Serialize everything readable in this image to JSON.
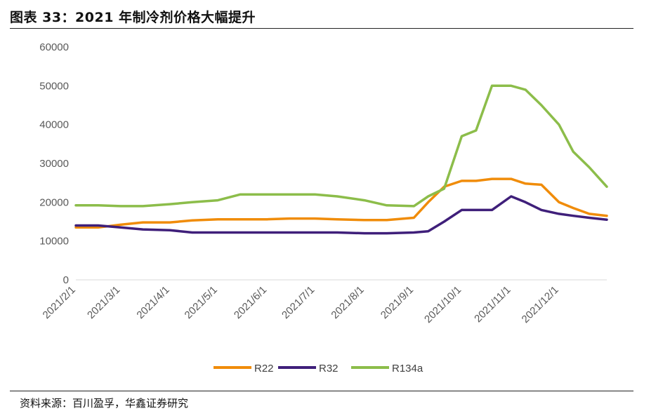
{
  "figure": {
    "title": "图表 33：2021 年制冷剂价格大幅提升",
    "source": "资料来源：百川盈孚，华鑫证券研究"
  },
  "chart_data": {
    "type": "line",
    "x_ticks": [
      "2021/2/1",
      "2021/3/1",
      "2021/4/1",
      "2021/5/1",
      "2021/6/1",
      "2021/7/1",
      "2021/8/1",
      "2021/9/1",
      "2021/10/1",
      "2021/11/1",
      "2021/12/1"
    ],
    "ylim": [
      0,
      60000
    ],
    "y_ticks": [
      0,
      10000,
      20000,
      30000,
      40000,
      50000,
      60000
    ],
    "grid": false,
    "legend_position": "bottom",
    "x": [
      "2021-02-01",
      "2021-02-15",
      "2021-03-01",
      "2021-03-15",
      "2021-04-01",
      "2021-04-15",
      "2021-05-01",
      "2021-05-15",
      "2021-06-01",
      "2021-06-15",
      "2021-07-01",
      "2021-07-15",
      "2021-08-01",
      "2021-08-15",
      "2021-09-01",
      "2021-09-10",
      "2021-09-20",
      "2021-10-01",
      "2021-10-10",
      "2021-10-20",
      "2021-11-01",
      "2021-11-10",
      "2021-11-20",
      "2021-12-01",
      "2021-12-10",
      "2021-12-20",
      "2021-12-31"
    ],
    "series": [
      {
        "name": "R22",
        "color": "#f08c0a",
        "values": [
          13500,
          13500,
          14200,
          14800,
          14800,
          15300,
          15600,
          15600,
          15600,
          15800,
          15800,
          15600,
          15400,
          15400,
          16000,
          20000,
          24000,
          25500,
          25500,
          26000,
          26000,
          24800,
          24500,
          20000,
          18500,
          17000,
          16500
        ]
      },
      {
        "name": "R32",
        "color": "#3f1f7a",
        "values": [
          14000,
          14000,
          13500,
          13000,
          12800,
          12200,
          12200,
          12200,
          12200,
          12200,
          12200,
          12200,
          12000,
          12000,
          12200,
          12500,
          15000,
          18000,
          18000,
          18000,
          21500,
          20000,
          18000,
          17000,
          16500,
          16000,
          15500
        ]
      },
      {
        "name": "R134a",
        "color": "#8cbd4a",
        "values": [
          19200,
          19200,
          19000,
          19000,
          19500,
          20000,
          20500,
          22000,
          22000,
          22000,
          22000,
          21500,
          20500,
          19200,
          19000,
          21500,
          23500,
          37000,
          38500,
          50000,
          50000,
          49000,
          45000,
          40000,
          33000,
          29000,
          24000
        ]
      }
    ]
  }
}
